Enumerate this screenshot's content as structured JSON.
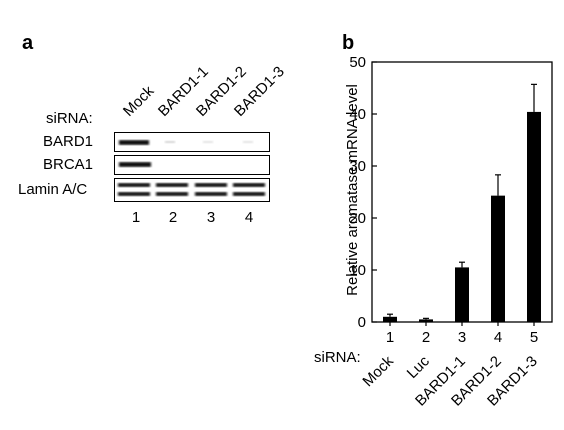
{
  "panel_a": {
    "letter": "a",
    "sirna_label": "siRNA:",
    "lane_labels": [
      "Mock",
      "BARD1-1",
      "BARD1-2",
      "BARD1-3"
    ],
    "rows": [
      "BARD1",
      "BRCA1",
      "Lamin A/C"
    ],
    "lane_numbers": [
      "1",
      "2",
      "3",
      "4"
    ]
  },
  "panel_b": {
    "letter": "b",
    "sirna_label": "siRNA:"
  },
  "chart_data": {
    "type": "bar",
    "ylabel": "Relative aromatase mRNA level",
    "ylim": [
      0,
      50
    ],
    "yticks": [
      0,
      10,
      20,
      30,
      40,
      50
    ],
    "categories": [
      "1",
      "2",
      "3",
      "4",
      "5"
    ],
    "category_names": [
      "Mock",
      "Luc",
      "BARD1-1",
      "BARD1-2",
      "BARD1-3"
    ],
    "values": [
      1.0,
      0.5,
      10.5,
      24.3,
      40.4
    ],
    "errors": [
      0.5,
      0.2,
      1.0,
      4.0,
      5.3
    ],
    "bar_color": "#000000"
  }
}
